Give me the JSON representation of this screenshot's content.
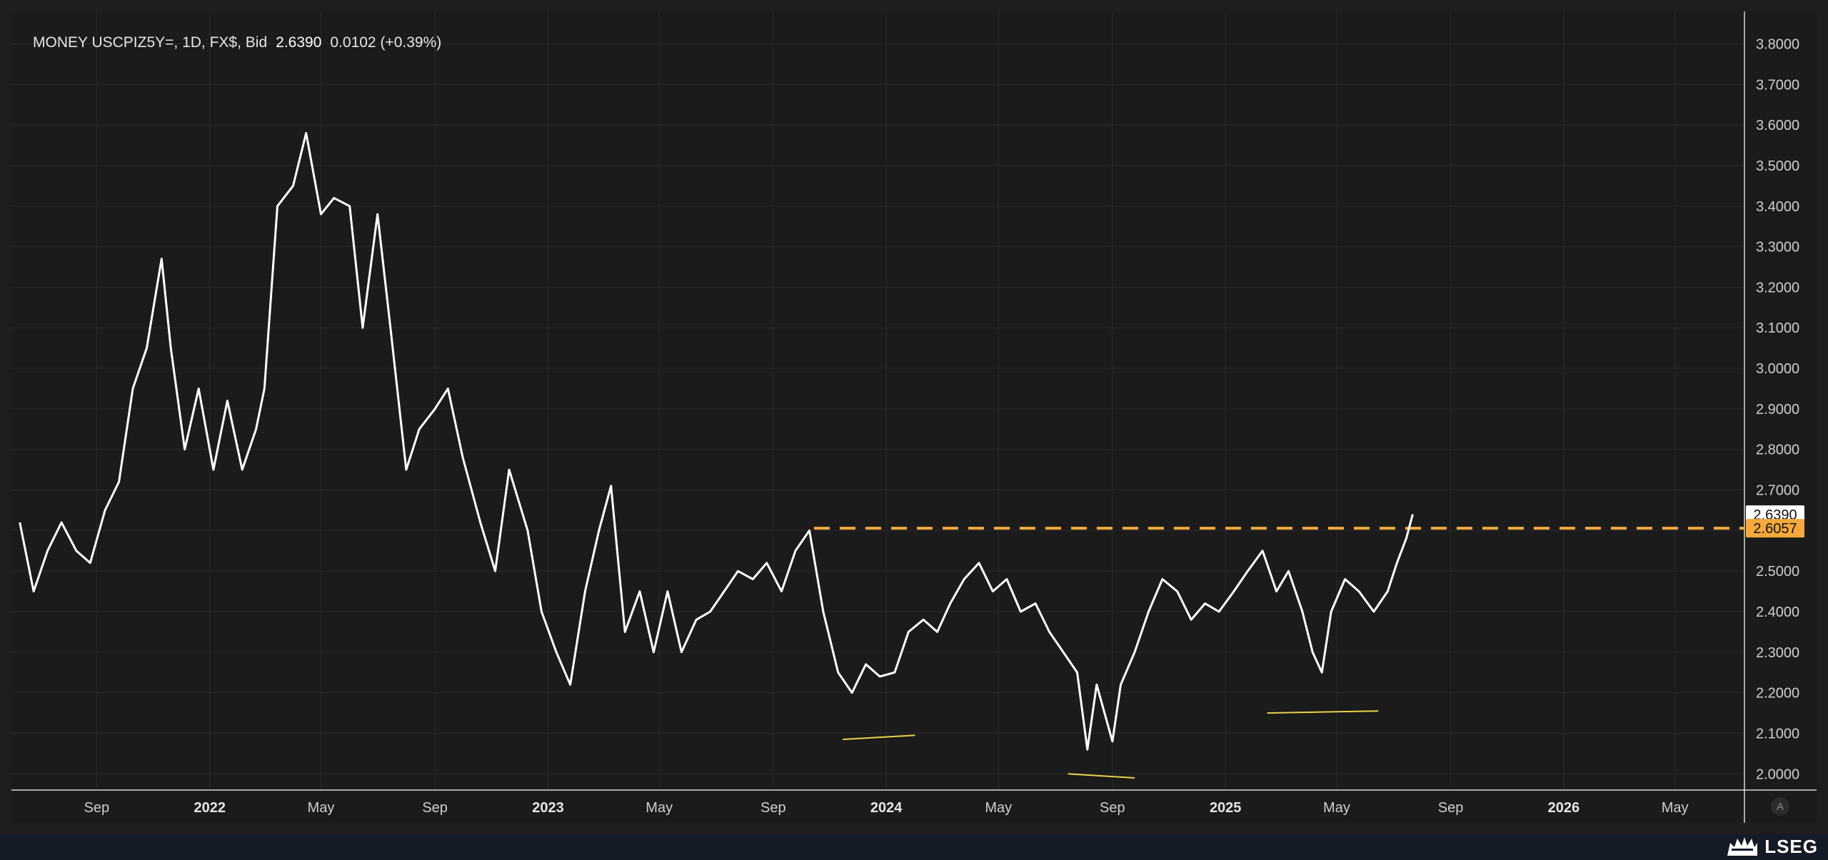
{
  "header": {
    "instrument": "MONEY USCPIZ5Y=, 1D, FX$, Bid",
    "last_value": "2.6390",
    "change": "0.0102 (+0.39%)"
  },
  "auto_scale_label": "A",
  "brand": "LSEG",
  "colors": {
    "background": "#1b1b1b",
    "grid": "#2a2a2a",
    "price_line": "#ffffff",
    "level_line": "#f5a93c",
    "trendlines": "#e8d24a",
    "axis_text": "#cfcfcf"
  },
  "chart_data": {
    "type": "line",
    "title": "",
    "series": [
      {
        "name": "",
        "x": [
          "2021-06-10",
          "2021-06-25",
          "2021-07-10",
          "2021-07-25",
          "2021-08-10",
          "2021-08-25",
          "2021-09-10",
          "2021-09-25",
          "2021-10-10",
          "2021-10-25",
          "2021-11-10",
          "2021-11-20",
          "2021-12-05",
          "2021-12-20",
          "2022-01-05",
          "2022-01-20",
          "2022-02-05",
          "2022-02-20",
          "2022-03-01",
          "2022-03-15",
          "2022-04-01",
          "2022-04-15",
          "2022-05-01",
          "2022-05-15",
          "2022-06-01",
          "2022-06-15",
          "2022-07-01",
          "2022-07-15",
          "2022-08-01",
          "2022-08-15",
          "2022-09-01",
          "2022-09-15",
          "2022-10-01",
          "2022-10-20",
          "2022-11-05",
          "2022-11-20",
          "2022-12-10",
          "2022-12-25",
          "2023-01-10",
          "2023-01-25",
          "2023-02-10",
          "2023-02-25",
          "2023-03-10",
          "2023-03-25",
          "2023-04-10",
          "2023-04-25",
          "2023-05-10",
          "2023-05-25",
          "2023-06-10",
          "2023-06-25",
          "2023-07-10",
          "2023-07-25",
          "2023-08-10",
          "2023-08-25",
          "2023-09-10",
          "2023-09-25",
          "2023-10-10",
          "2023-10-25",
          "2023-11-10",
          "2023-11-25",
          "2023-12-10",
          "2023-12-25",
          "2024-01-10",
          "2024-01-25",
          "2024-02-10",
          "2024-02-25",
          "2024-03-10",
          "2024-03-25",
          "2024-04-10",
          "2024-04-25",
          "2024-05-10",
          "2024-05-25",
          "2024-06-10",
          "2024-06-25",
          "2024-07-10",
          "2024-07-25",
          "2024-08-05",
          "2024-08-15",
          "2024-09-01",
          "2024-09-10",
          "2024-09-25",
          "2024-10-10",
          "2024-10-25",
          "2024-11-10",
          "2024-11-25",
          "2024-12-10",
          "2024-12-25",
          "2025-01-10",
          "2025-01-25",
          "2025-02-10",
          "2025-02-25",
          "2025-03-10",
          "2025-03-25",
          "2025-04-05",
          "2025-04-15",
          "2025-04-25",
          "2025-05-10",
          "2025-05-25",
          "2025-06-10",
          "2025-06-25",
          "2025-07-05",
          "2025-07-15",
          "2025-07-22"
        ],
        "values": [
          2.62,
          2.45,
          2.55,
          2.62,
          2.55,
          2.52,
          2.65,
          2.72,
          2.95,
          3.05,
          3.27,
          3.05,
          2.8,
          2.95,
          2.75,
          2.92,
          2.75,
          2.85,
          2.95,
          3.4,
          3.45,
          3.58,
          3.38,
          3.42,
          3.4,
          3.1,
          3.38,
          3.1,
          2.75,
          2.85,
          2.9,
          2.95,
          2.78,
          2.62,
          2.5,
          2.75,
          2.6,
          2.4,
          2.3,
          2.22,
          2.45,
          2.6,
          2.71,
          2.35,
          2.45,
          2.3,
          2.45,
          2.3,
          2.38,
          2.4,
          2.45,
          2.5,
          2.48,
          2.52,
          2.45,
          2.55,
          2.6,
          2.4,
          2.25,
          2.2,
          2.27,
          2.24,
          2.25,
          2.35,
          2.38,
          2.35,
          2.42,
          2.48,
          2.52,
          2.45,
          2.48,
          2.4,
          2.42,
          2.35,
          2.3,
          2.25,
          2.06,
          2.22,
          2.08,
          2.22,
          2.3,
          2.4,
          2.48,
          2.45,
          2.38,
          2.42,
          2.4,
          2.45,
          2.5,
          2.55,
          2.45,
          2.5,
          2.4,
          2.3,
          2.25,
          2.4,
          2.48,
          2.45,
          2.4,
          2.45,
          2.52,
          2.58,
          2.64
        ]
      }
    ],
    "xlim": [
      "2021-06-01",
      "2026-07-15"
    ],
    "ylim": [
      1.96,
      3.88
    ],
    "x_ticks": [
      {
        "date": "2021-09-01",
        "label": "Sep",
        "bold": false
      },
      {
        "date": "2022-01-01",
        "label": "2022",
        "bold": true
      },
      {
        "date": "2022-05-01",
        "label": "May",
        "bold": false
      },
      {
        "date": "2022-09-01",
        "label": "Sep",
        "bold": false
      },
      {
        "date": "2023-01-01",
        "label": "2023",
        "bold": true
      },
      {
        "date": "2023-05-01",
        "label": "May",
        "bold": false
      },
      {
        "date": "2023-09-01",
        "label": "Sep",
        "bold": false
      },
      {
        "date": "2024-01-01",
        "label": "2024",
        "bold": true
      },
      {
        "date": "2024-05-01",
        "label": "May",
        "bold": false
      },
      {
        "date": "2024-09-01",
        "label": "Sep",
        "bold": false
      },
      {
        "date": "2025-01-01",
        "label": "2025",
        "bold": true
      },
      {
        "date": "2025-05-01",
        "label": "May",
        "bold": false
      },
      {
        "date": "2025-09-01",
        "label": "Sep",
        "bold": false
      },
      {
        "date": "2026-01-01",
        "label": "2026",
        "bold": true
      },
      {
        "date": "2026-05-01",
        "label": "May",
        "bold": false
      }
    ],
    "y_ticks": [
      "2.0000",
      "2.1000",
      "2.2000",
      "2.3000",
      "2.4000",
      "2.5000",
      "2.6000",
      "2.7000",
      "2.8000",
      "2.9000",
      "3.0000",
      "3.1000",
      "3.2000",
      "3.3000",
      "3.4000",
      "3.5000",
      "3.6000",
      "3.7000",
      "3.8000"
    ],
    "horizontal_level": {
      "value": 2.6057,
      "label": "2.6057",
      "start": "2023-10-15",
      "style": "dashed"
    },
    "last_price_label": {
      "value": 2.639,
      "label": "2.6390"
    },
    "trendlines": [
      {
        "start": [
          "2023-11-15",
          2.085
        ],
        "end": [
          "2024-02-01",
          2.095
        ]
      },
      {
        "start": [
          "2024-07-15",
          2.0
        ],
        "end": [
          "2024-09-25",
          1.99
        ]
      },
      {
        "start": [
          "2025-02-15",
          2.15
        ],
        "end": [
          "2025-06-15",
          2.155
        ]
      }
    ],
    "grid": true,
    "legend": "none"
  }
}
